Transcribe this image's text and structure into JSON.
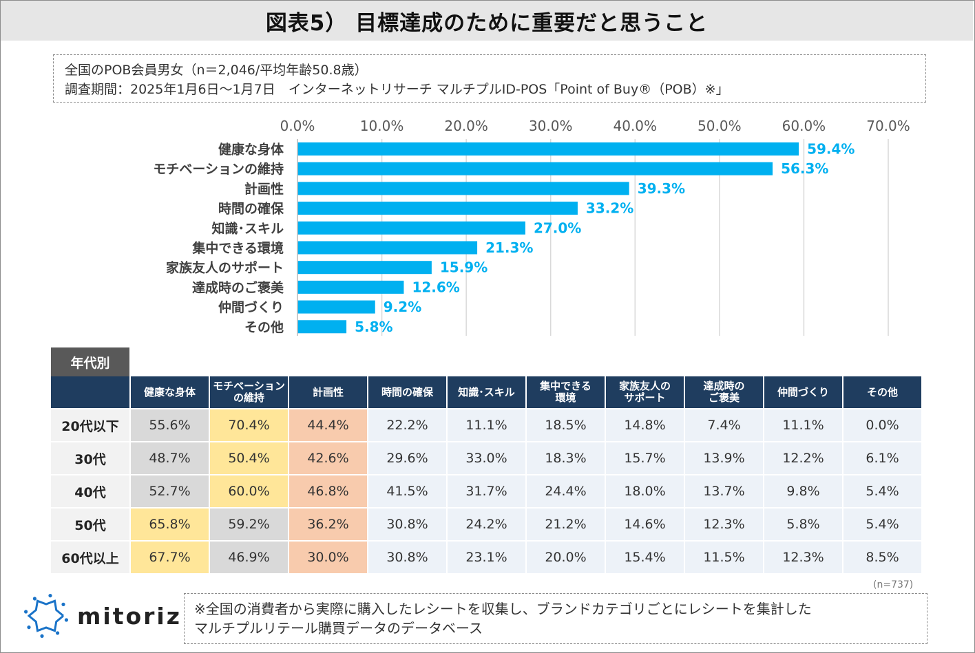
{
  "title": "図表5） 目標達成のために重要だと思うこと",
  "info": {
    "line1": "全国のPOB会員男女（n＝2,046/平均年齢50.8歳）",
    "line2": "調査期間：2025年1月6日～1月7日　インターネットリサーチ マルチプルID-POS「Point of Buy®（POB）※」"
  },
  "chart_data": {
    "type": "bar",
    "orientation": "horizontal",
    "categories": [
      "健康な身体",
      "モチベーションの維持",
      "計画性",
      "時間の確保",
      "知識･スキル",
      "集中できる環境",
      "家族友人のサポート",
      "達成時のご褒美",
      "仲間づくり",
      "その他"
    ],
    "values": [
      59.4,
      56.3,
      39.3,
      33.2,
      27.0,
      21.3,
      15.9,
      12.6,
      9.2,
      5.8
    ],
    "value_labels": [
      "59.4%",
      "56.3%",
      "39.3%",
      "33.2%",
      "27.0%",
      "21.3%",
      "15.9%",
      "12.6%",
      "9.2%",
      "5.8%"
    ],
    "ticks": [
      "0.0%",
      "10.0%",
      "20.0%",
      "30.0%",
      "40.0%",
      "50.0%",
      "60.0%",
      "70.0%"
    ],
    "xlim": [
      0,
      70
    ],
    "grid": true,
    "bar_color": "#00b0f0",
    "label_color": "#00b0f0"
  },
  "table": {
    "tag": "年代別",
    "columns": [
      [
        "健康な身体"
      ],
      [
        "モチベーション",
        "の維持"
      ],
      [
        "計画性"
      ],
      [
        "時間の確保"
      ],
      [
        "知識･スキル"
      ],
      [
        "集中できる",
        "環境"
      ],
      [
        "家族友人の",
        "サポート"
      ],
      [
        "達成時の",
        "ご褒美"
      ],
      [
        "仲間づくり"
      ],
      [
        "その他"
      ]
    ],
    "rows": [
      {
        "label": "20代以下",
        "cells": [
          "55.6%",
          "70.4%",
          "44.4%",
          "22.2%",
          "11.1%",
          "18.5%",
          "14.8%",
          "7.4%",
          "11.1%",
          "0.0%"
        ],
        "highlights": [
          "gray",
          "yellow",
          "orange",
          "",
          "",
          "",
          "",
          "",
          "",
          ""
        ]
      },
      {
        "label": "30代",
        "cells": [
          "48.7%",
          "50.4%",
          "42.6%",
          "29.6%",
          "33.0%",
          "18.3%",
          "15.7%",
          "13.9%",
          "12.2%",
          "6.1%"
        ],
        "highlights": [
          "gray",
          "yellow",
          "orange",
          "",
          "",
          "",
          "",
          "",
          "",
          ""
        ]
      },
      {
        "label": "40代",
        "cells": [
          "52.7%",
          "60.0%",
          "46.8%",
          "41.5%",
          "31.7%",
          "24.4%",
          "18.0%",
          "13.7%",
          "9.8%",
          "5.4%"
        ],
        "highlights": [
          "gray",
          "yellow",
          "orange",
          "",
          "",
          "",
          "",
          "",
          "",
          ""
        ]
      },
      {
        "label": "50代",
        "cells": [
          "65.8%",
          "59.2%",
          "36.2%",
          "30.8%",
          "24.2%",
          "21.2%",
          "14.6%",
          "12.3%",
          "5.8%",
          "5.4%"
        ],
        "highlights": [
          "yellow",
          "gray",
          "orange",
          "",
          "",
          "",
          "",
          "",
          "",
          ""
        ]
      },
      {
        "label": "60代以上",
        "cells": [
          "67.7%",
          "46.9%",
          "30.0%",
          "30.8%",
          "23.1%",
          "20.0%",
          "15.4%",
          "11.5%",
          "12.3%",
          "8.5%"
        ],
        "highlights": [
          "yellow",
          "gray",
          "orange",
          "",
          "",
          "",
          "",
          "",
          "",
          ""
        ]
      }
    ],
    "sample_note": "(n=737)"
  },
  "logo": {
    "text": "mitoriz",
    "icon": "mitoriz-logo-icon",
    "color": "#1a73c8"
  },
  "footnote": {
    "line1": "※全国の消費者から実際に購入したレシートを収集し、ブランドカテゴリごとにレシートを集計した",
    "line2": "マルチプルリテール購買データのデータベース"
  }
}
